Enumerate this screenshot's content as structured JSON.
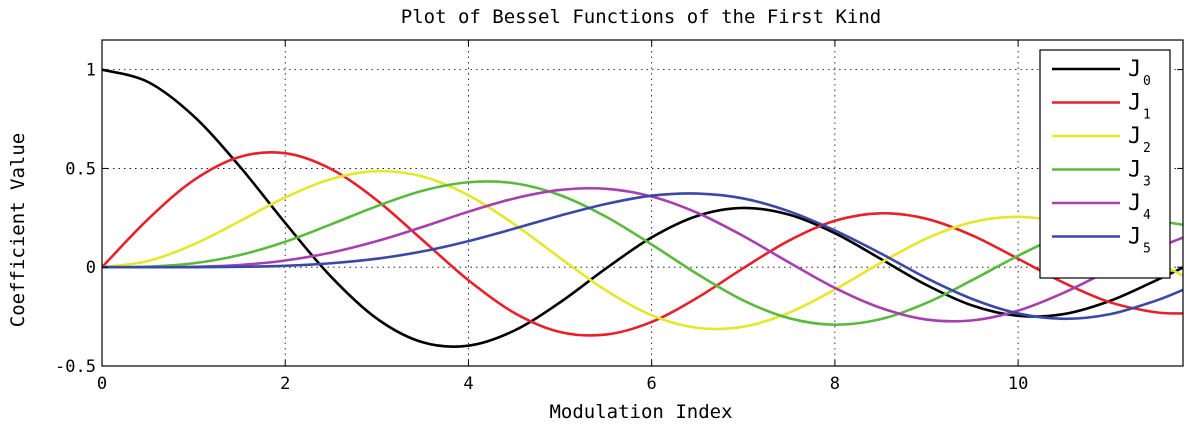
{
  "chart_data": {
    "type": "line",
    "title": "Plot of Bessel Functions of the First Kind",
    "xlabel": "Modulation Index",
    "ylabel": "Coefficient Value",
    "xlim": [
      0,
      11.8
    ],
    "ylim": [
      -0.5,
      1.15
    ],
    "xticks": [
      0,
      2,
      4,
      6,
      8,
      10
    ],
    "yticks": [
      -0.5,
      0,
      0.5,
      1
    ],
    "grid": true,
    "grid_style": "dotted",
    "legend_position": "top-right",
    "x": [
      0,
      0.5,
      1,
      1.5,
      2,
      2.5,
      3,
      3.5,
      4,
      4.5,
      5,
      5.5,
      6,
      6.5,
      7,
      7.5,
      8,
      8.5,
      9,
      9.5,
      10,
      10.5,
      11,
      11.5,
      11.8
    ],
    "series": [
      {
        "name": "J",
        "subscript": "0",
        "color": "#000000",
        "values": [
          1,
          0.938,
          0.765,
          0.512,
          0.224,
          -0.048,
          -0.26,
          -0.38,
          -0.397,
          -0.321,
          -0.178,
          -0.007,
          0.151,
          0.26,
          0.3,
          0.266,
          0.172,
          0.042,
          -0.09,
          -0.194,
          -0.246,
          -0.237,
          -0.171,
          -0.068,
          -0.002
        ]
      },
      {
        "name": "J",
        "subscript": "1",
        "color": "#e8202a",
        "values": [
          0,
          0.242,
          0.44,
          0.558,
          0.577,
          0.497,
          0.339,
          0.137,
          -0.066,
          -0.231,
          -0.328,
          -0.341,
          -0.277,
          -0.154,
          -0.005,
          0.135,
          0.235,
          0.273,
          0.245,
          0.161,
          0.043,
          -0.079,
          -0.177,
          -0.228,
          -0.234
        ]
      },
      {
        "name": "J",
        "subscript": "2",
        "color": "#e6e62a",
        "values": [
          0,
          0.031,
          0.115,
          0.232,
          0.353,
          0.446,
          0.486,
          0.459,
          0.364,
          0.218,
          0.047,
          -0.117,
          -0.243,
          -0.307,
          -0.301,
          -0.23,
          -0.113,
          0.022,
          0.145,
          0.228,
          0.255,
          0.223,
          0.139,
          0.029,
          -0.043
        ]
      },
      {
        "name": "J",
        "subscript": "3",
        "color": "#5aba3c",
        "values": [
          0,
          0.003,
          0.02,
          0.061,
          0.129,
          0.217,
          0.309,
          0.387,
          0.43,
          0.425,
          0.365,
          0.256,
          0.115,
          -0.035,
          -0.168,
          -0.258,
          -0.291,
          -0.263,
          -0.181,
          -0.065,
          0.058,
          0.165,
          0.227,
          0.232,
          0.215
        ]
      },
      {
        "name": "J",
        "subscript": "4",
        "color": "#a640ae",
        "values": [
          0,
          0.0,
          0.002,
          0.011,
          0.034,
          0.074,
          0.132,
          0.204,
          0.281,
          0.348,
          0.391,
          0.397,
          0.358,
          0.275,
          0.158,
          0.024,
          -0.105,
          -0.206,
          -0.265,
          -0.269,
          -0.22,
          -0.129,
          -0.015,
          0.094,
          0.15
        ]
      },
      {
        "name": "J",
        "subscript": "5",
        "color": "#3a48a8",
        "values": [
          0,
          0.0,
          0.0,
          0.002,
          0.007,
          0.02,
          0.043,
          0.08,
          0.132,
          0.195,
          0.261,
          0.32,
          0.362,
          0.373,
          0.348,
          0.283,
          0.186,
          0.07,
          -0.055,
          -0.161,
          -0.234,
          -0.261,
          -0.238,
          -0.17,
          -0.115
        ]
      }
    ]
  }
}
